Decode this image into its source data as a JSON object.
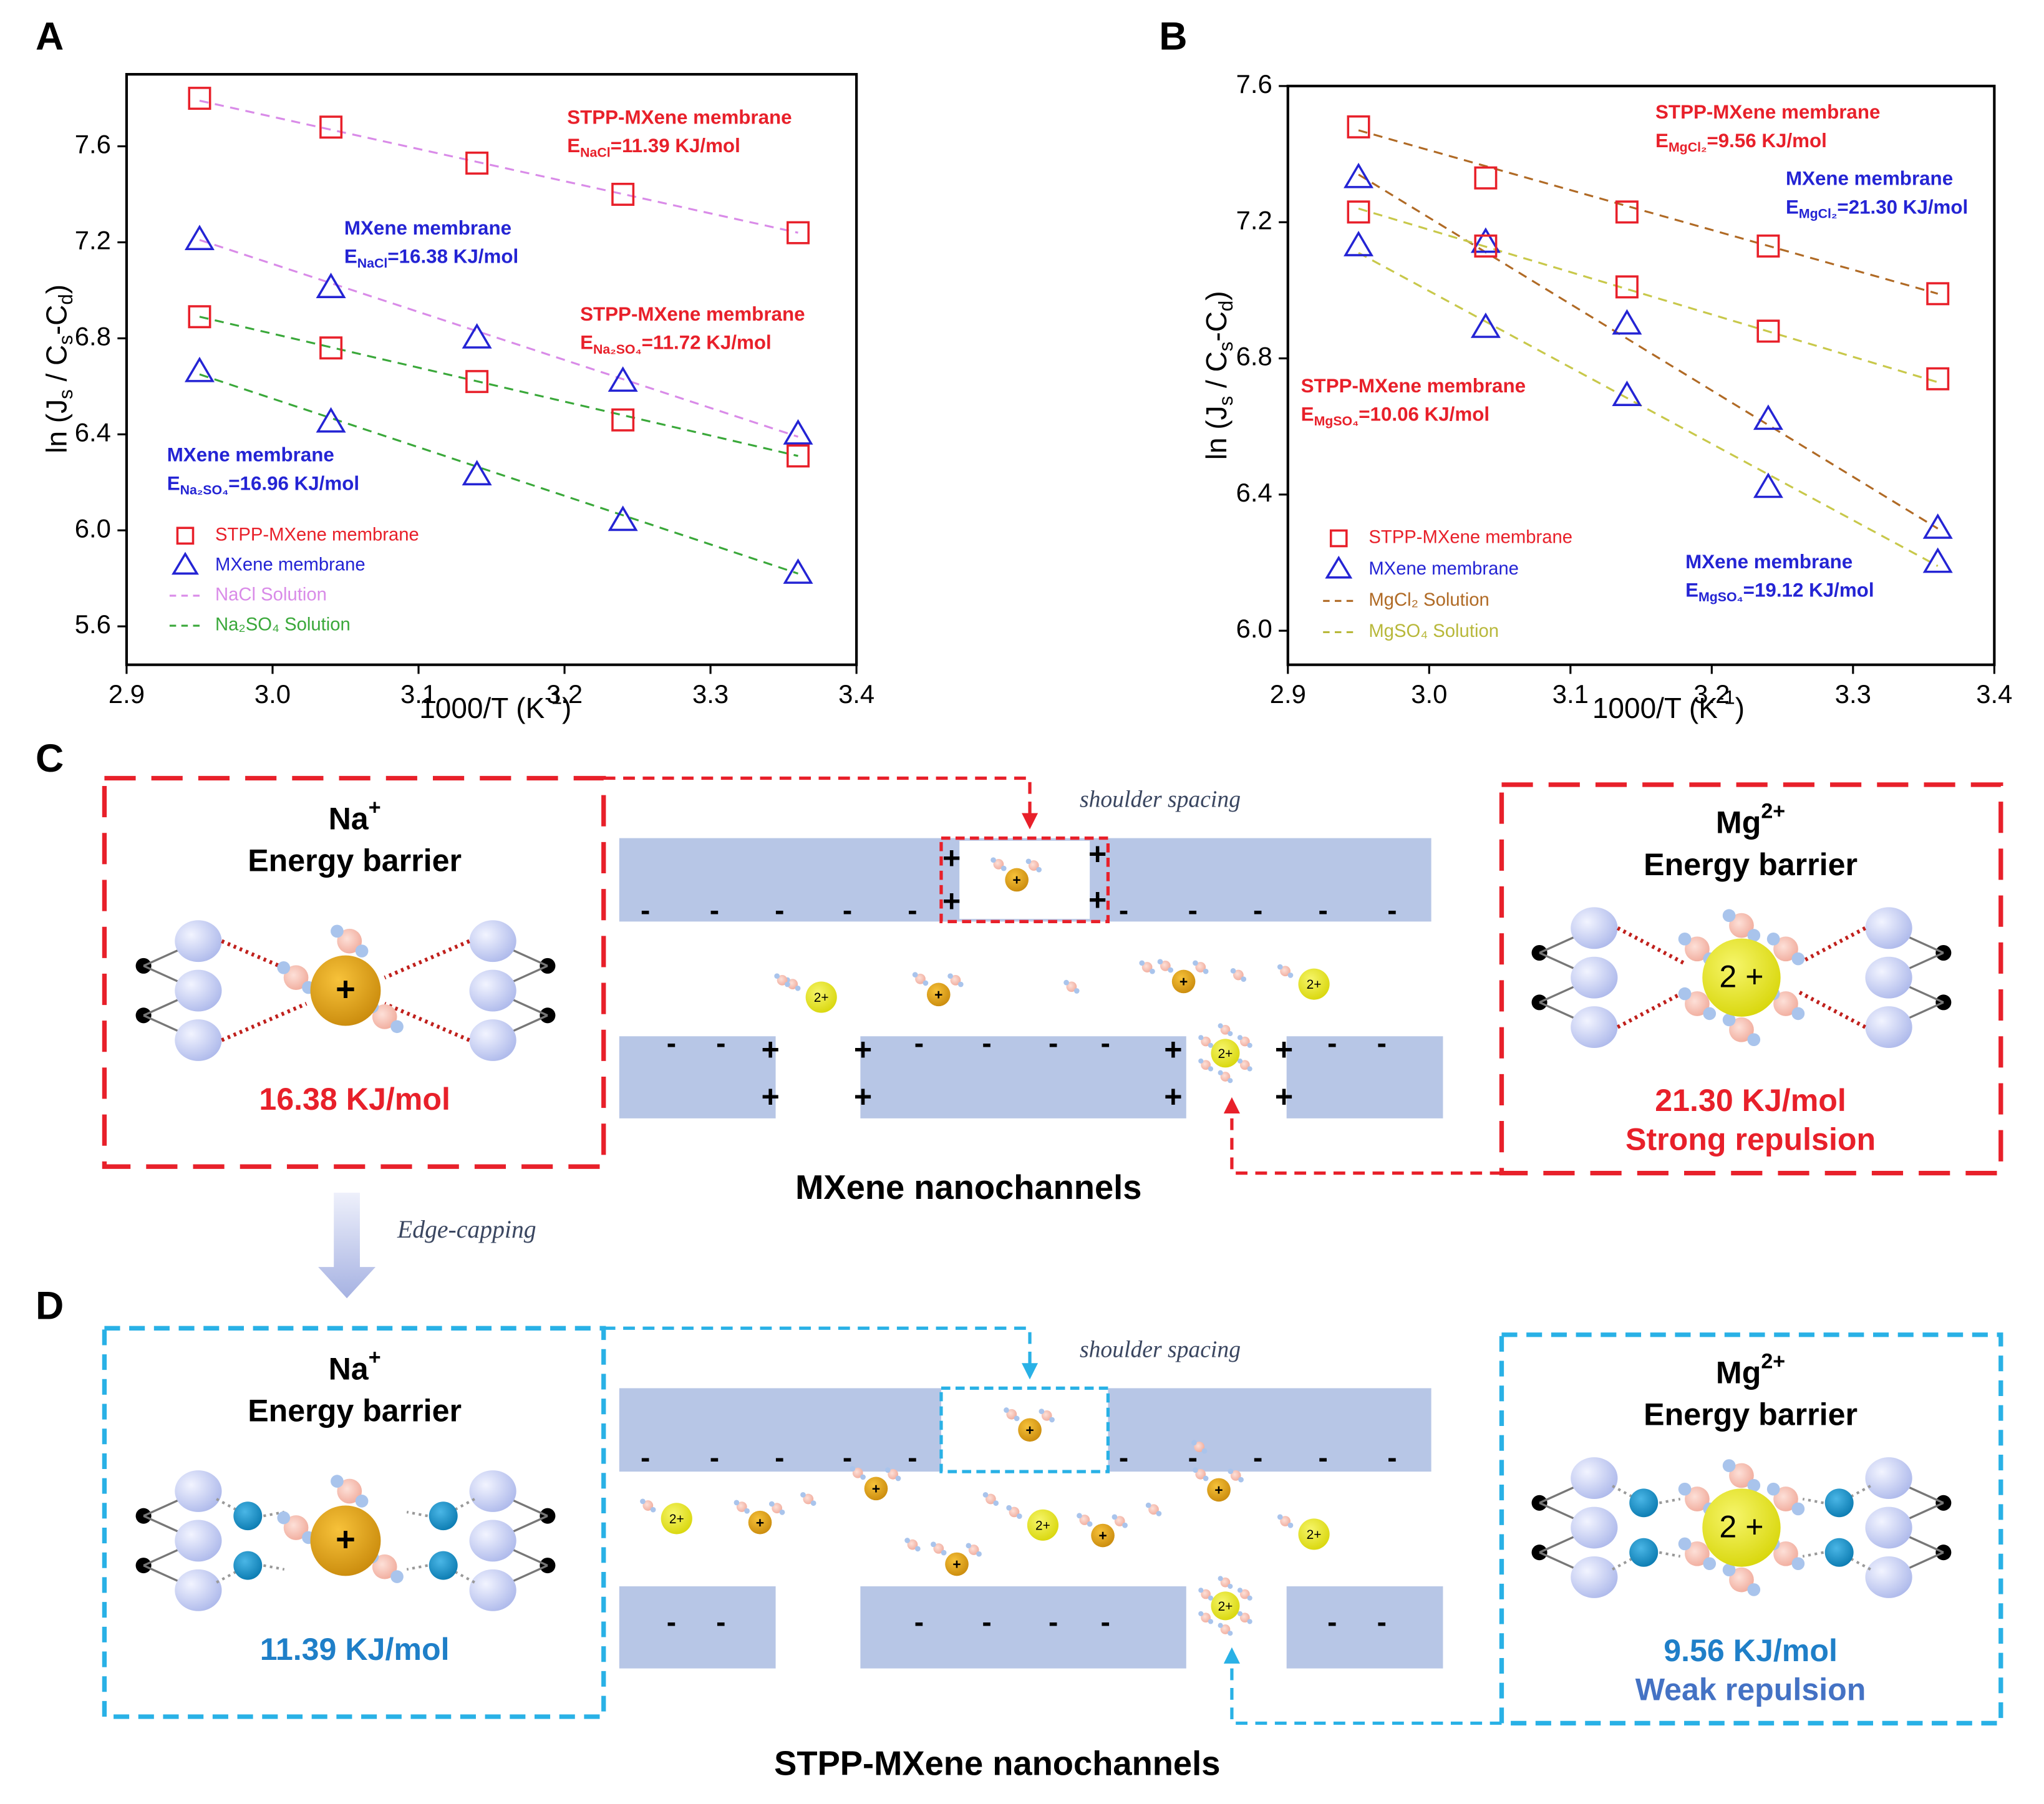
{
  "panel_labels": [
    "A",
    "B",
    "C",
    "D"
  ],
  "chart_data": [
    {
      "type": "scatter",
      "x": [
        2.95,
        3.04,
        3.14,
        3.24,
        3.36
      ],
      "xlim": [
        2.9,
        3.4
      ],
      "xticks": [
        2.9,
        {
          "value": 3,
          "label": "3.0"
        },
        3.1,
        3.2,
        3.3,
        3.4
      ],
      "ylim": [
        5.44,
        7.9
      ],
      "yticks": [
        5.6,
        {
          "value": 6,
          "label": "6.0"
        },
        6.4,
        6.8,
        7.2,
        7.6
      ],
      "xlabel": [
        "1000/T (K",
        "-1",
        ")"
      ],
      "ylabel": [
        "ln (J",
        "s",
        " / C",
        "s",
        "-C",
        "d",
        ")"
      ],
      "fit_x": [
        2.95,
        3.36
      ],
      "legend": [
        {
          "name": "STPP-MXene membrane",
          "color": "#e8202a",
          "marker": "square"
        },
        {
          "name": "MXene membrane",
          "color": "#2424d4",
          "marker": "triangle"
        },
        {
          "name": "NaCl Solution",
          "color": "#d98be8",
          "marker": "dash"
        },
        {
          "name": "Na₂SO₄ Solution",
          "color": "#3aa83a",
          "marker": "dash"
        }
      ],
      "series": [
        {
          "marker": "square",
          "color": "#e8202a",
          "fit_color": "#d98be8",
          "values": [
            7.8,
            7.68,
            7.53,
            7.4,
            7.24
          ],
          "fit": [
            7.79,
            7.24
          ]
        },
        {
          "marker": "triangle",
          "color": "#2424d4",
          "fit_color": "#d98be8",
          "values": [
            7.21,
            7.01,
            6.8,
            6.62,
            6.4
          ],
          "fit": [
            7.21,
            6.39
          ]
        },
        {
          "marker": "square",
          "color": "#e8202a",
          "fit_color": "#3aa83a",
          "values": [
            6.89,
            6.76,
            6.62,
            6.46,
            6.31
          ],
          "fit": [
            6.89,
            6.31
          ]
        },
        {
          "marker": "triangle",
          "color": "#2424d4",
          "fit_color": "#3aa83a",
          "values": [
            6.66,
            6.45,
            6.23,
            6.04,
            5.82
          ],
          "fit": [
            6.65,
            5.82
          ]
        }
      ],
      "annotations": [
        {
          "title": "STPP-MXene membrane",
          "energy": [
            "E",
            "NaCl",
            "=11.39 KJ/mol"
          ],
          "color": "#e8202a"
        },
        {
          "title": "MXene membrane",
          "energy": [
            "E",
            "NaCl",
            "=16.38 KJ/mol"
          ],
          "color": "#2424d4"
        },
        {
          "title": "STPP-MXene membrane",
          "energy": [
            "E",
            "Na₂SO₄",
            "=11.72 KJ/mol"
          ],
          "color": "#e8202a"
        },
        {
          "title": "MXene membrane",
          "energy": [
            "E",
            "Na₂SO₄",
            "=16.96 KJ/mol"
          ],
          "color": "#2424d4"
        }
      ]
    },
    {
      "type": "scatter",
      "x": [
        2.95,
        3.04,
        3.14,
        3.24,
        3.36
      ],
      "xlim": [
        2.9,
        3.4
      ],
      "xticks": [
        2.9,
        {
          "value": 3,
          "label": "3.0"
        },
        3.1,
        3.2,
        3.3,
        3.4
      ],
      "ylim": [
        5.9,
        7.6
      ],
      "yticks": [
        {
          "value": 6,
          "label": "6.0"
        },
        6.4,
        6.8,
        7.2,
        7.6
      ],
      "xlabel": [
        "1000/T (K",
        "-1",
        ")"
      ],
      "ylabel": [
        "ln (J",
        "s",
        " / C",
        "s",
        "-C",
        "d",
        ")"
      ],
      "fit_x": [
        2.95,
        3.36
      ],
      "legend": [
        {
          "name": "STPP-MXene membrane",
          "color": "#e8202a",
          "marker": "square"
        },
        {
          "name": "MXene membrane",
          "color": "#2424d4",
          "marker": "triangle"
        },
        {
          "name": "MgCl₂ Solution",
          "color": "#b06a25",
          "marker": "dash"
        },
        {
          "name": "MgSO₄ Solution",
          "color": "#b8b83a",
          "marker": "dash"
        }
      ],
      "series": [
        {
          "marker": "square",
          "color": "#e8202a",
          "fit_color": "#b06a25",
          "values": [
            7.48,
            7.33,
            7.23,
            7.13,
            6.99
          ],
          "fit": [
            7.47,
            6.99
          ]
        },
        {
          "marker": "triangle",
          "color": "#2424d4",
          "fit_color": "#b06a25",
          "values": [
            7.33,
            7.14,
            6.9,
            6.62,
            6.3
          ],
          "fit": [
            7.34,
            6.3
          ]
        },
        {
          "marker": "square",
          "color": "#e8202a",
          "fit_color": "#c8c84a",
          "values": [
            7.23,
            7.13,
            7.01,
            6.88,
            6.74
          ],
          "fit": [
            7.24,
            6.73
          ]
        },
        {
          "marker": "triangle",
          "color": "#2424d4",
          "fit_color": "#c8c84a",
          "values": [
            7.13,
            6.89,
            6.69,
            6.42,
            6.2
          ],
          "fit": [
            7.11,
            6.19
          ]
        }
      ],
      "annotations": [
        {
          "title": "STPP-MXene membrane",
          "energy": [
            "E",
            "MgCl₂",
            "=9.56 KJ/mol"
          ],
          "color": "#e8202a"
        },
        {
          "title": "MXene membrane",
          "energy": [
            "E",
            "MgCl₂",
            "=21.30 KJ/mol"
          ],
          "color": "#2424d4"
        },
        {
          "title": "STPP-MXene membrane",
          "energy": [
            "E",
            "MgSO₄",
            "=10.06 KJ/mol"
          ],
          "color": "#e8202a"
        },
        {
          "title": "MXene membrane",
          "energy": [
            "E",
            "MgSO₄",
            "=19.12 KJ/mol"
          ],
          "color": "#2424d4"
        }
      ]
    }
  ],
  "diagram": {
    "plus": "+",
    "minus": "-",
    "ion_charge": "2+",
    "large_ion_charge": "2 +",
    "shoulder_spacing": "shoulder spacing",
    "edge_capping": "Edge-capping",
    "panel_c": {
      "na": {
        "ion": [
          "Na",
          "+"
        ],
        "title": "Energy barrier",
        "energy": "16.38 KJ/mol"
      },
      "mg": {
        "ion": [
          "Mg",
          "2+"
        ],
        "title": "Energy barrier",
        "energy": "21.30 KJ/mol",
        "note": "Strong repulsion"
      },
      "caption": "MXene nanochannels"
    },
    "panel_d": {
      "na": {
        "ion": [
          "Na",
          "+"
        ],
        "title": "Energy barrier",
        "energy": "11.39 KJ/mol"
      },
      "mg": {
        "ion": [
          "Mg",
          "2+"
        ],
        "title": "Energy barrier",
        "energy": "9.56 KJ/mol",
        "note": "Weak repulsion"
      },
      "caption": "STPP-MXene nanochannels"
    }
  }
}
